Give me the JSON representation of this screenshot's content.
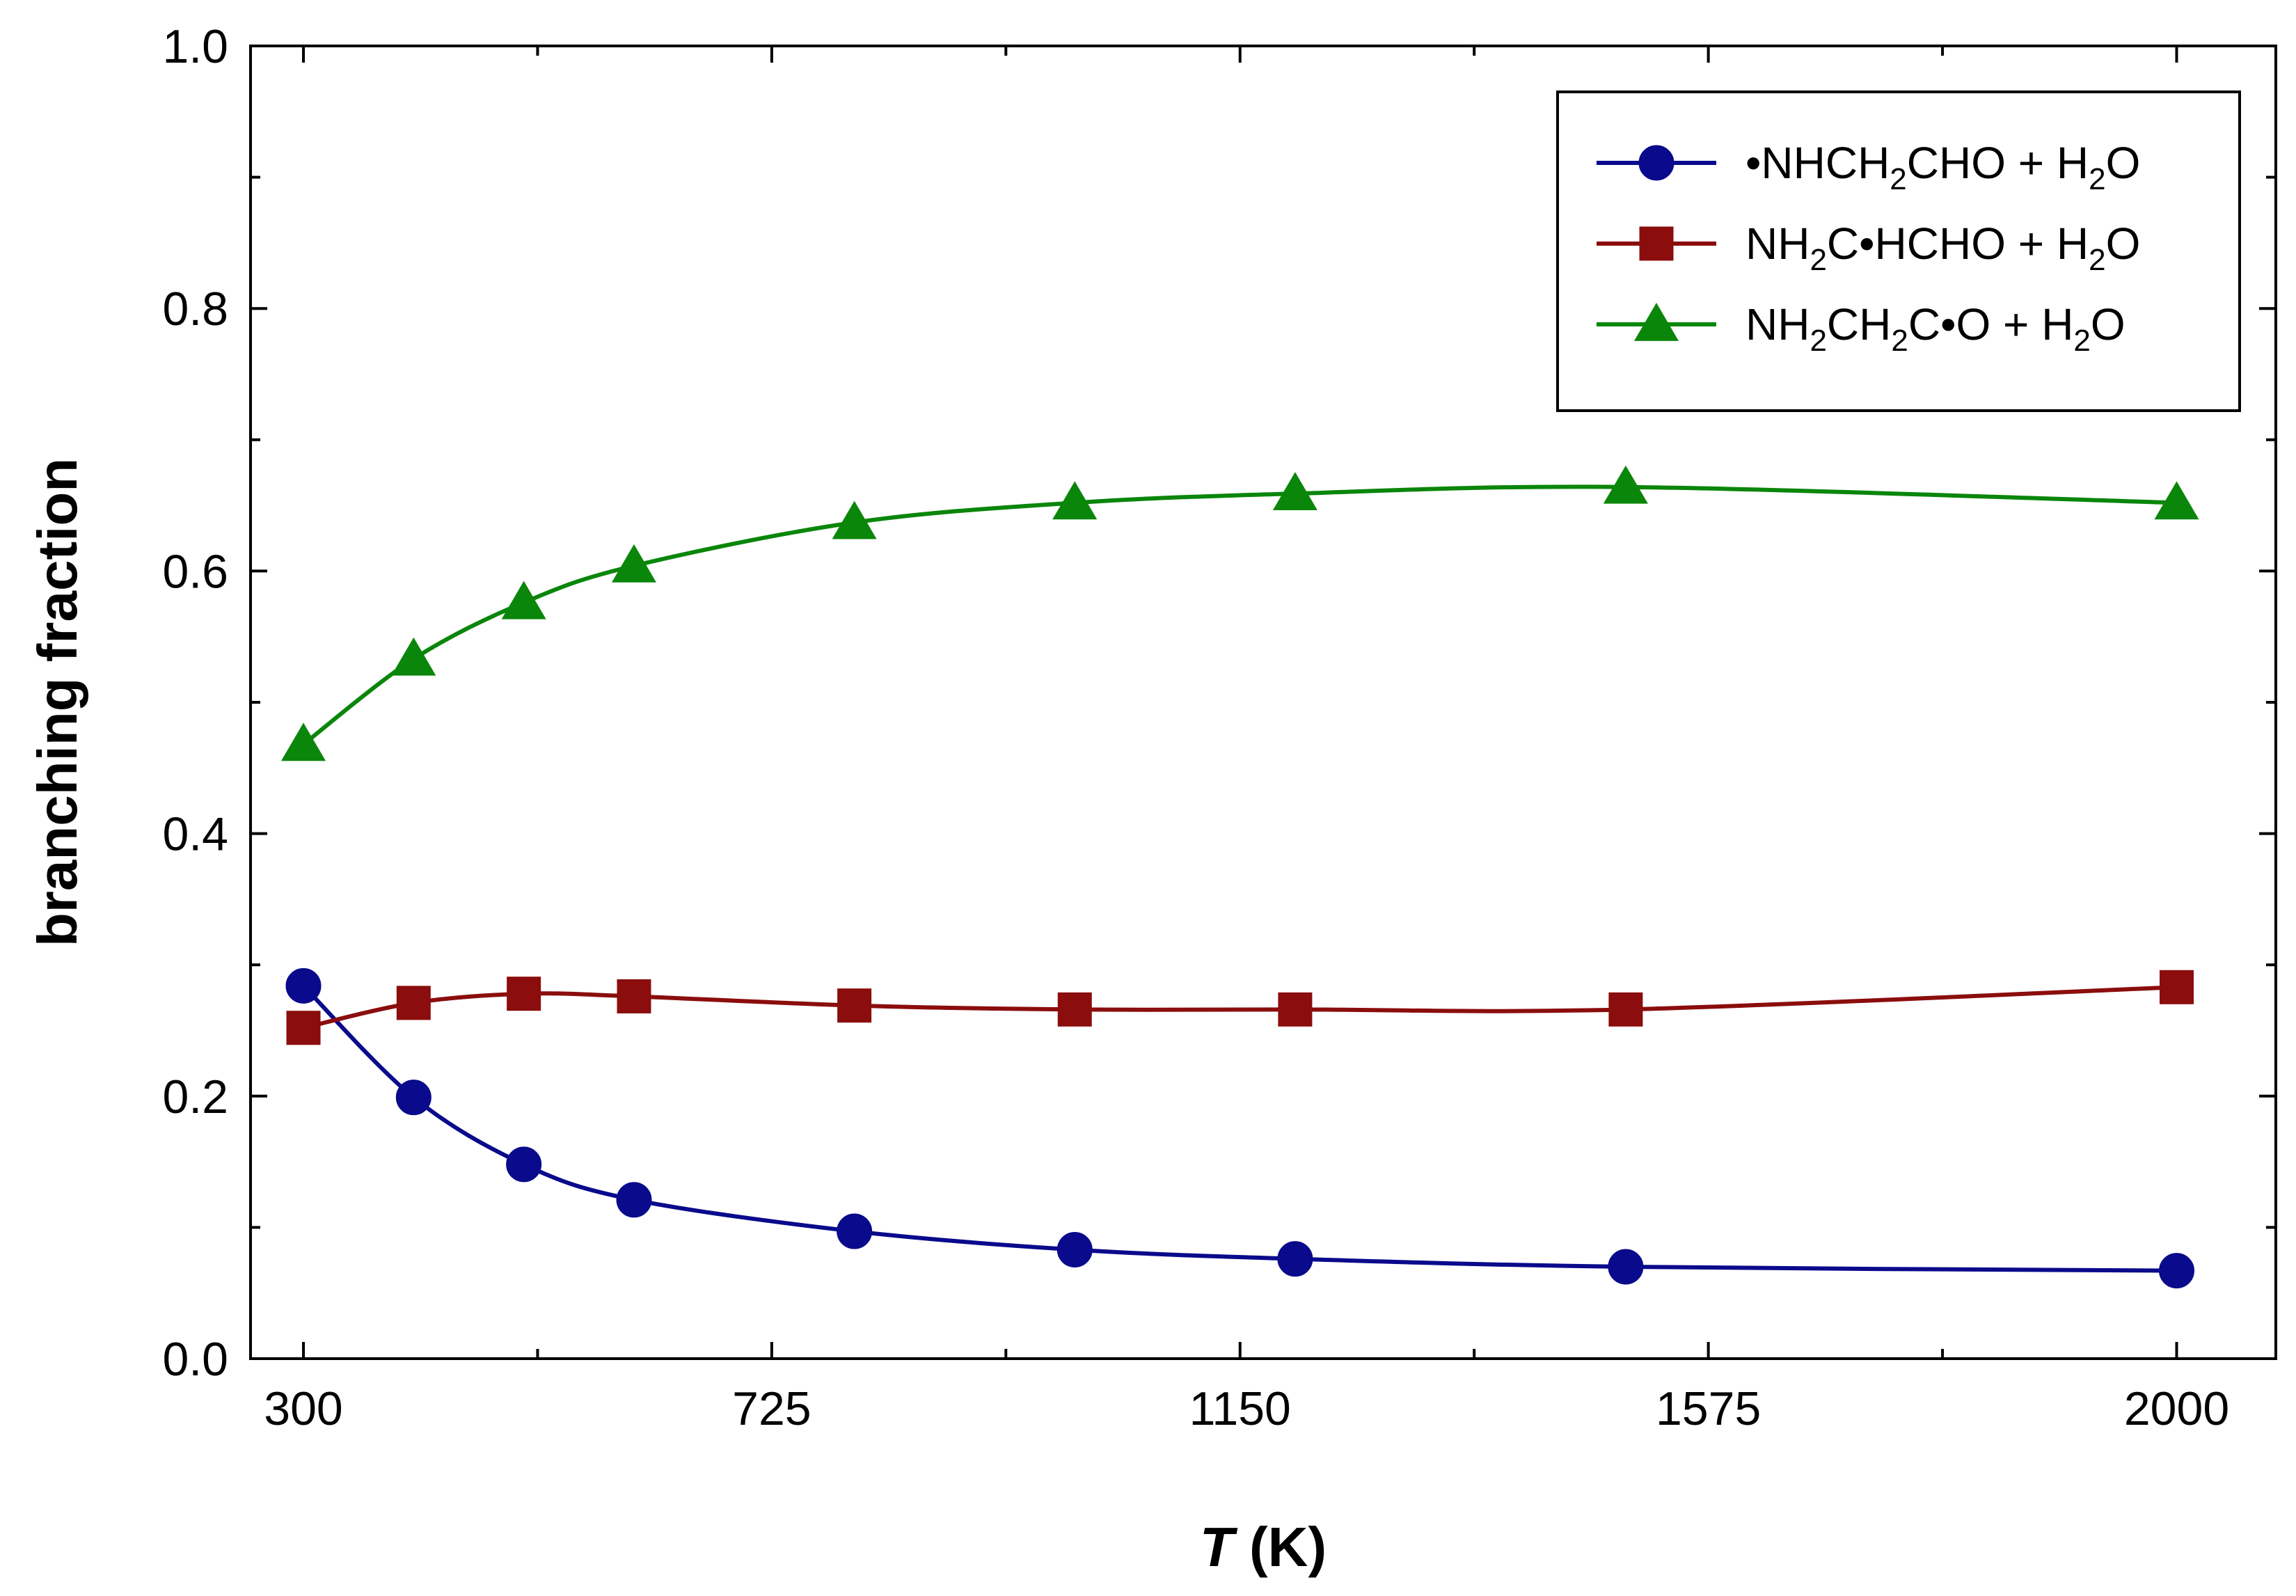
{
  "chart_data": {
    "type": "line",
    "title": "",
    "xlabel_italic": "T",
    "xlabel_rest": " (K)",
    "ylabel": "branching fraction",
    "xlim": [
      252,
      2090
    ],
    "ylim": [
      0.0,
      1.0
    ],
    "x_ticks": [
      300,
      725,
      1150,
      1575,
      2000
    ],
    "x_tick_labels": [
      "300",
      "725",
      "1150",
      "1575",
      "2000"
    ],
    "x_minor_ticks": [
      512.5,
      937.5,
      1362.5,
      1787.5
    ],
    "y_ticks": [
      0.0,
      0.2,
      0.4,
      0.6,
      0.8,
      1.0
    ],
    "y_tick_labels": [
      "0.0",
      "0.2",
      "0.4",
      "0.6",
      "0.8",
      "1.0"
    ],
    "y_minor_ticks": [
      0.1,
      0.3,
      0.5,
      0.7,
      0.9
    ],
    "grid": false,
    "legend_position": "top-right",
    "x": [
      300,
      400,
      500,
      600,
      800,
      1000,
      1200,
      1500,
      2000
    ],
    "series": [
      {
        "name": "•NHCH2CHO + H2O",
        "label_parts": [
          "•NHCH",
          "2",
          "CHO + H",
          "2",
          "O"
        ],
        "marker": "circle",
        "color": "#0a0a8c",
        "values": [
          0.284,
          0.199,
          0.148,
          0.121,
          0.097,
          0.083,
          0.076,
          0.07,
          0.067
        ]
      },
      {
        "name": "NH2C•HCHO + H2O",
        "label_parts": [
          "NH",
          "2",
          "C•HCHO + H",
          "2",
          "O"
        ],
        "marker": "square",
        "color": "#8b0d0d",
        "values": [
          0.252,
          0.271,
          0.278,
          0.276,
          0.269,
          0.266,
          0.266,
          0.266,
          0.283
        ]
      },
      {
        "name": "NH2CH2C•O + H2O",
        "label_parts": [
          "NH",
          "2",
          "CH",
          "2",
          "C•O + H",
          "2",
          "O"
        ],
        "marker": "triangle",
        "color": "#0a860a",
        "values": [
          0.468,
          0.533,
          0.576,
          0.604,
          0.637,
          0.652,
          0.659,
          0.664,
          0.652
        ]
      }
    ]
  }
}
